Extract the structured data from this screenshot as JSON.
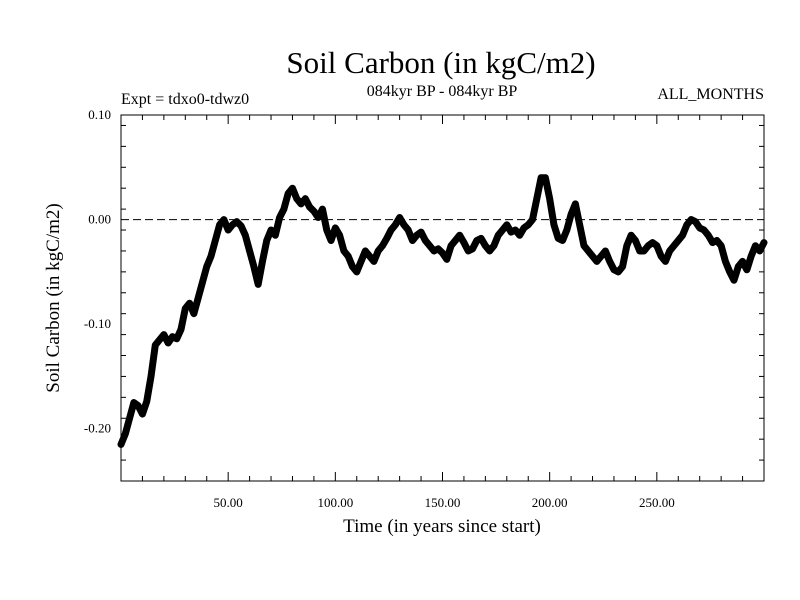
{
  "chart_data": {
    "type": "line",
    "title": "Soil Carbon (in kgC/m2)",
    "left_note": "Expt = tdxo0-tdwz0",
    "center_note": "084kyr BP - 084kyr BP",
    "right_note": "ALL_MONTHS",
    "xlabel": "Time (in years since start)",
    "ylabel": "Soil Carbon (in kgC/m2)",
    "xlim": [
      0,
      300
    ],
    "ylim": [
      -0.25,
      0.1
    ],
    "xticks": [
      {
        "value": 50,
        "label": "50.00"
      },
      {
        "value": 100,
        "label": "100.00"
      },
      {
        "value": 150,
        "label": "150.00"
      },
      {
        "value": 200,
        "label": "200.00"
      },
      {
        "value": 250,
        "label": "250.00"
      }
    ],
    "yticks": [
      {
        "value": 0.1,
        "label": "0.10"
      },
      {
        "value": 0.0,
        "label": "0.00"
      },
      {
        "value": -0.1,
        "label": "-0.10"
      },
      {
        "value": -0.2,
        "label": "-0.20"
      }
    ],
    "reference_line": {
      "y": 0.0,
      "style": "dashed"
    },
    "series": [
      {
        "x": [
          0,
          2,
          4,
          6,
          8,
          10,
          12,
          14,
          16,
          18,
          20,
          22,
          24,
          26,
          28,
          30,
          32,
          34,
          36,
          38,
          40,
          42,
          44,
          46,
          48,
          50,
          52,
          54,
          56,
          58,
          60,
          62,
          64,
          66,
          68,
          70,
          72,
          74,
          76,
          78,
          80,
          82,
          84,
          86,
          88,
          90,
          92,
          94,
          96,
          98,
          100,
          102,
          104,
          106,
          108,
          110,
          112,
          114,
          116,
          118,
          120,
          122,
          124,
          126,
          128,
          130,
          132,
          134,
          136,
          138,
          140,
          142,
          144,
          146,
          148,
          150,
          152,
          154,
          156,
          158,
          160,
          162,
          164,
          166,
          168,
          170,
          172,
          174,
          176,
          178,
          180,
          182,
          184,
          186,
          188,
          190,
          192,
          194,
          196,
          198,
          200,
          202,
          204,
          206,
          208,
          210,
          212,
          214,
          216,
          218,
          220,
          222,
          224,
          226,
          228,
          230,
          232,
          234,
          236,
          238,
          240,
          242,
          244,
          246,
          248,
          250,
          252,
          254,
          256,
          258,
          260,
          262,
          264,
          266,
          268,
          270,
          272,
          274,
          276,
          278,
          280,
          282,
          284,
          286,
          288,
          290,
          292,
          294,
          296,
          298,
          300
        ],
        "y": [
          -0.215,
          -0.205,
          -0.19,
          -0.175,
          -0.178,
          -0.186,
          -0.174,
          -0.15,
          -0.12,
          -0.115,
          -0.11,
          -0.118,
          -0.112,
          -0.114,
          -0.105,
          -0.085,
          -0.08,
          -0.09,
          -0.075,
          -0.06,
          -0.045,
          -0.035,
          -0.02,
          -0.005,
          0.0,
          -0.01,
          -0.005,
          -0.002,
          -0.006,
          -0.015,
          -0.03,
          -0.045,
          -0.062,
          -0.04,
          -0.02,
          -0.01,
          -0.015,
          0.002,
          0.01,
          0.025,
          0.03,
          0.02,
          0.015,
          0.02,
          0.012,
          0.008,
          0.002,
          0.01,
          -0.01,
          -0.02,
          -0.008,
          -0.015,
          -0.03,
          -0.035,
          -0.045,
          -0.05,
          -0.04,
          -0.03,
          -0.035,
          -0.04,
          -0.03,
          -0.025,
          -0.018,
          -0.01,
          -0.005,
          0.002,
          -0.005,
          -0.01,
          -0.02,
          -0.015,
          -0.012,
          -0.02,
          -0.025,
          -0.03,
          -0.028,
          -0.032,
          -0.038,
          -0.025,
          -0.02,
          -0.015,
          -0.022,
          -0.03,
          -0.028,
          -0.02,
          -0.018,
          -0.025,
          -0.03,
          -0.025,
          -0.015,
          -0.01,
          -0.005,
          -0.012,
          -0.01,
          -0.015,
          -0.008,
          -0.005,
          0.0,
          0.02,
          0.04,
          0.04,
          0.02,
          -0.005,
          -0.018,
          -0.02,
          -0.01,
          0.005,
          0.015,
          -0.005,
          -0.025,
          -0.03,
          -0.035,
          -0.04,
          -0.035,
          -0.03,
          -0.04,
          -0.048,
          -0.05,
          -0.045,
          -0.025,
          -0.015,
          -0.02,
          -0.03,
          -0.03,
          -0.025,
          -0.022,
          -0.025,
          -0.035,
          -0.04,
          -0.03,
          -0.025,
          -0.02,
          -0.015,
          -0.005,
          0.0,
          -0.002,
          -0.008,
          -0.01,
          -0.015,
          -0.022,
          -0.02,
          -0.025,
          -0.04,
          -0.05,
          -0.058,
          -0.045,
          -0.04,
          -0.048,
          -0.035,
          -0.025,
          -0.03,
          -0.022
        ]
      }
    ]
  }
}
